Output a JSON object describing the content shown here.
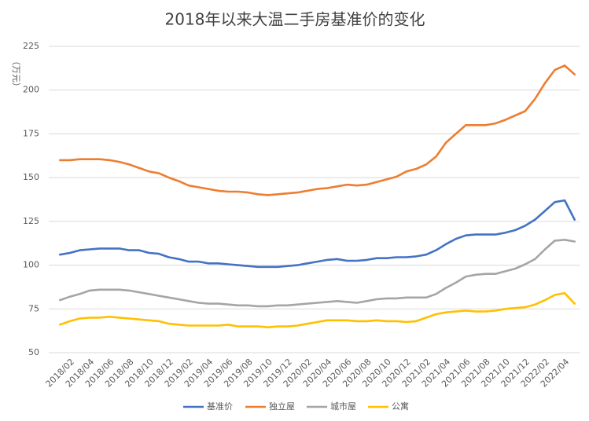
{
  "chart_data": {
    "type": "line",
    "title": "2018年以来大温二手房基准价的变化",
    "y_label": "（万元）",
    "categories": [
      null,
      "2018/02",
      null,
      "2018/04",
      null,
      "2018/06",
      null,
      "2018/08",
      null,
      "2018/10",
      null,
      "2018/12",
      null,
      "2019/02",
      null,
      "2019/04",
      null,
      "2019/06",
      null,
      "2019/08",
      null,
      "2019/10",
      null,
      "2019/12",
      null,
      "2020/02",
      null,
      "2020/04",
      null,
      "2020/06",
      null,
      "2020/08",
      null,
      "2020/10",
      null,
      "2020/12",
      null,
      "2021/02",
      null,
      "2021/04",
      null,
      "2021/06",
      null,
      "2021/08",
      null,
      "2021/10",
      null,
      "2021/12",
      null,
      "2022/02",
      null,
      "2022/04",
      null
    ],
    "series": [
      {
        "name": "基准价",
        "color": "#4472c4",
        "values": [
          106,
          107,
          108.5,
          109,
          109.5,
          109.5,
          109.5,
          108.5,
          108.5,
          107,
          106.5,
          104.5,
          103.5,
          102,
          102,
          101,
          101,
          100.5,
          100,
          99.5,
          99,
          99,
          99,
          99.5,
          100,
          101,
          102,
          103,
          103.5,
          102.5,
          102.5,
          103,
          104,
          104,
          104.5,
          104.5,
          105,
          106,
          108.5,
          112,
          115,
          117,
          117.5,
          117.5,
          117.5,
          118.5,
          120,
          122.5,
          126,
          131,
          136,
          137,
          126
        ]
      },
      {
        "name": "独立屋",
        "color": "#ed7d31",
        "values": [
          160,
          160,
          160.5,
          160.5,
          160.5,
          160,
          159,
          157.5,
          155.5,
          153.5,
          152.5,
          150,
          148,
          145.5,
          144.5,
          143.5,
          142.5,
          142,
          142,
          141.5,
          140.5,
          140,
          140.5,
          141,
          141.5,
          142.5,
          143.5,
          144,
          145,
          146,
          145.5,
          146,
          147.5,
          149,
          150.5,
          153.5,
          155,
          157.5,
          162,
          170,
          175,
          180,
          180,
          180,
          181,
          183,
          185.5,
          188,
          195,
          204,
          211.5,
          214,
          209
        ]
      },
      {
        "name": "城市屋",
        "color": "#a5a5a5",
        "values": [
          80,
          82,
          83.5,
          85.5,
          86,
          86,
          86,
          85.5,
          84.5,
          83.5,
          82.5,
          81.5,
          80.5,
          79.5,
          78.5,
          78,
          78,
          77.5,
          77,
          77,
          76.5,
          76.5,
          77,
          77,
          77.5,
          78,
          78.5,
          79,
          79.5,
          79,
          78.5,
          79.5,
          80.5,
          81,
          81,
          81.5,
          81.5,
          81.5,
          83.5,
          87,
          90,
          93.5,
          94.5,
          95,
          95,
          96.5,
          98,
          100.5,
          103.5,
          109,
          114,
          114.5,
          113.5
        ]
      },
      {
        "name": "公寓",
        "color": "#ffc000",
        "values": [
          66,
          68,
          69.5,
          70,
          70,
          70.5,
          70,
          69.5,
          69,
          68.5,
          68,
          66.5,
          66,
          65.5,
          65.5,
          65.5,
          65.5,
          66,
          65,
          65,
          65,
          64.5,
          65,
          65,
          65.5,
          66.5,
          67.5,
          68.5,
          68.5,
          68.5,
          68,
          68,
          68.5,
          68,
          68,
          67.5,
          68,
          70,
          72,
          73,
          73.5,
          74,
          73.5,
          73.5,
          74,
          75,
          75.5,
          76,
          77.5,
          80,
          83,
          84,
          78
        ]
      }
    ],
    "ylim": [
      50,
      225
    ],
    "yticks": [
      50,
      75,
      100,
      125,
      150,
      175,
      200,
      225
    ],
    "grid": true,
    "legend": "bottom"
  }
}
